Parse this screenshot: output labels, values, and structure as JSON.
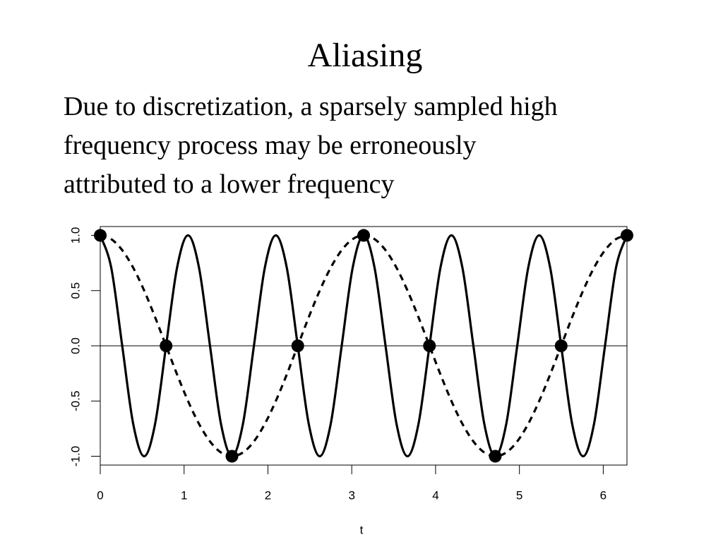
{
  "chart_data": {
    "type": "line",
    "title": "Aliasing",
    "subtitle_lines": [
      "Due to discretization, a sparsely sampled high",
      "frequency process may be erroneously",
      "attributed to a lower frequency"
    ],
    "xlabel": "t",
    "xlim": [
      0,
      6.283
    ],
    "xticks": [
      0,
      1,
      2,
      3,
      4,
      5,
      6
    ],
    "ylim": [
      -1.08,
      1.08
    ],
    "yticks": [
      {
        "value": -1,
        "label": "-1.0"
      },
      {
        "value": -0.5,
        "label": "-0.5"
      },
      {
        "value": 0,
        "label": "0.0"
      },
      {
        "value": 0.5,
        "label": "0.5"
      },
      {
        "value": 1,
        "label": "1.0"
      }
    ],
    "hline": 0,
    "series": [
      {
        "style": "solid",
        "color": "#000000",
        "x": [
          0,
          0.131,
          0.262,
          0.393,
          0.524,
          0.654,
          0.785,
          0.916,
          1.047,
          1.178,
          1.309,
          1.44,
          1.571,
          1.702,
          1.833,
          1.963,
          2.094,
          2.225,
          2.356,
          2.487,
          2.618,
          2.749,
          2.88,
          3.011,
          3.142,
          3.272,
          3.403,
          3.534,
          3.665,
          3.796,
          3.927,
          4.058,
          4.189,
          4.32,
          4.451,
          4.581,
          4.712,
          4.843,
          4.974,
          5.105,
          5.236,
          5.367,
          5.498,
          5.629,
          5.76,
          5.89,
          6.021,
          6.152,
          6.283
        ],
        "values": [
          1,
          0.707,
          0,
          -0.707,
          -1,
          -0.707,
          0,
          0.707,
          1,
          0.707,
          0,
          -0.707,
          -1,
          -0.707,
          0,
          0.707,
          1,
          0.707,
          0,
          -0.707,
          -1,
          -0.707,
          0,
          0.707,
          1,
          0.707,
          0,
          -0.707,
          -1,
          -0.707,
          0,
          0.707,
          1,
          0.707,
          0,
          -0.707,
          -1,
          -0.707,
          0,
          0.707,
          1,
          0.707,
          0,
          -0.707,
          -1,
          -0.707,
          0,
          0.707,
          1
        ]
      },
      {
        "style": "dashed",
        "color": "#000000",
        "x": [
          0,
          0.131,
          0.262,
          0.393,
          0.524,
          0.654,
          0.785,
          0.916,
          1.047,
          1.178,
          1.309,
          1.44,
          1.571,
          1.702,
          1.833,
          1.963,
          2.094,
          2.225,
          2.356,
          2.487,
          2.618,
          2.749,
          2.88,
          3.011,
          3.142,
          3.272,
          3.403,
          3.534,
          3.665,
          3.796,
          3.927,
          4.058,
          4.189,
          4.32,
          4.451,
          4.581,
          4.712,
          4.843,
          4.974,
          5.105,
          5.236,
          5.367,
          5.498,
          5.629,
          5.76,
          5.89,
          6.021,
          6.152,
          6.283
        ],
        "values": [
          1,
          0.966,
          0.866,
          0.707,
          0.5,
          0.259,
          0,
          -0.259,
          -0.5,
          -0.707,
          -0.866,
          -0.966,
          -1,
          -0.966,
          -0.866,
          -0.707,
          -0.5,
          -0.259,
          0,
          0.259,
          0.5,
          0.707,
          0.866,
          0.966,
          1,
          0.966,
          0.866,
          0.707,
          0.5,
          0.259,
          0,
          -0.259,
          -0.5,
          -0.707,
          -0.866,
          -0.966,
          -1,
          -0.966,
          -0.866,
          -0.707,
          -0.5,
          -0.259,
          0,
          0.259,
          0.5,
          0.707,
          0.866,
          0.966,
          1
        ]
      },
      {
        "style": "points",
        "color": "#000000",
        "x": [
          0,
          0.785,
          1.571,
          2.356,
          3.142,
          3.927,
          4.712,
          5.498,
          6.283
        ],
        "values": [
          1,
          0,
          -1,
          0,
          1,
          0,
          -1,
          0,
          1
        ]
      }
    ]
  }
}
